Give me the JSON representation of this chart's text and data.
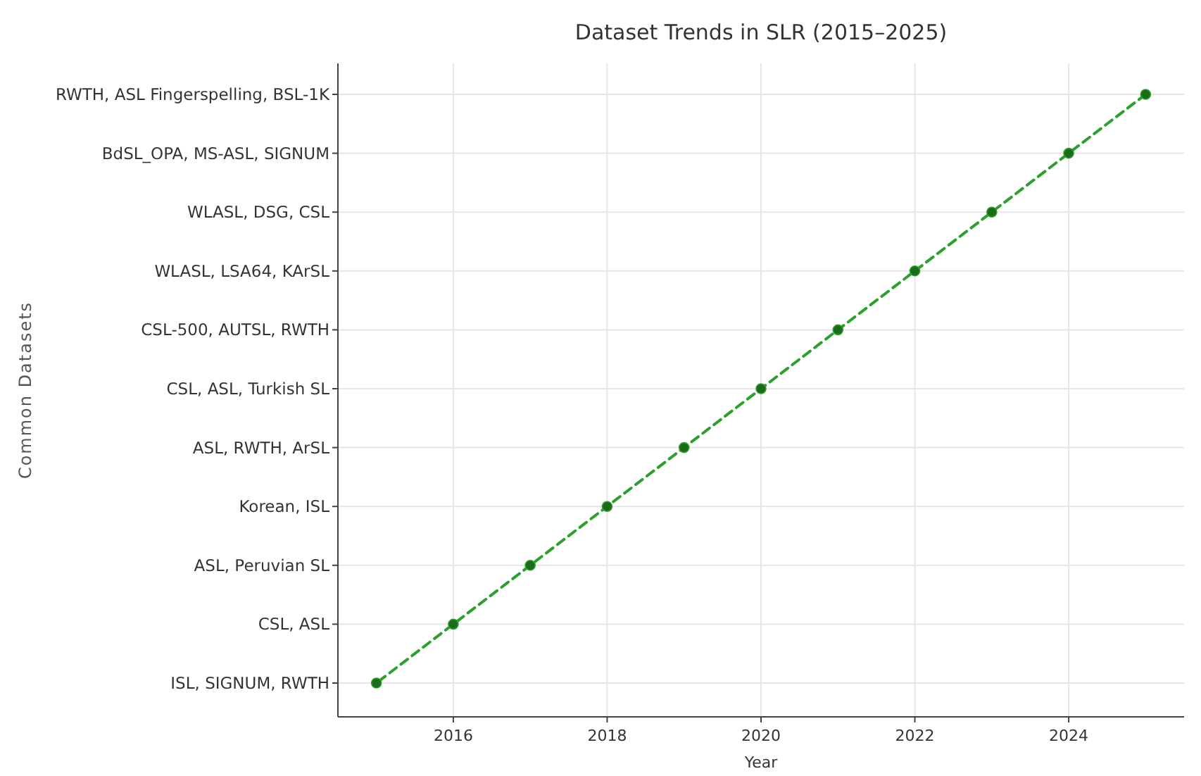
{
  "chart_data": {
    "type": "line",
    "orientation": "horizontal",
    "title": "Dataset Trends in SLR (2015–2025)",
    "xlabel": "Year",
    "ylabel": "Common Datasets",
    "categories": [
      "RWTH, ASL Fingerspelling, BSL-1K",
      "BdSL_OPA, MS-ASL, SIGNUM",
      "WLASL, DSG, CSL",
      "WLASL, LSA64, KArSL",
      "CSL-500, AUTSL, RWTH",
      "CSL, ASL, Turkish SL",
      "ASL, RWTH, ArSL",
      "Korean, ISL",
      "ASL, Peruvian SL",
      "CSL, ASL",
      "ISL, SIGNUM, RWTH"
    ],
    "series": [
      {
        "color": "#2ca02c",
        "values": [
          2025,
          2024,
          2023,
          2022,
          2021,
          2020,
          2019,
          2018,
          2017,
          2016,
          2015
        ]
      }
    ],
    "xlim": [
      2014.5,
      2025.5
    ],
    "xticks": [
      2016,
      2018,
      2020,
      2022,
      2024
    ],
    "grid": true,
    "marker": "circle",
    "line_style": "dashed"
  }
}
